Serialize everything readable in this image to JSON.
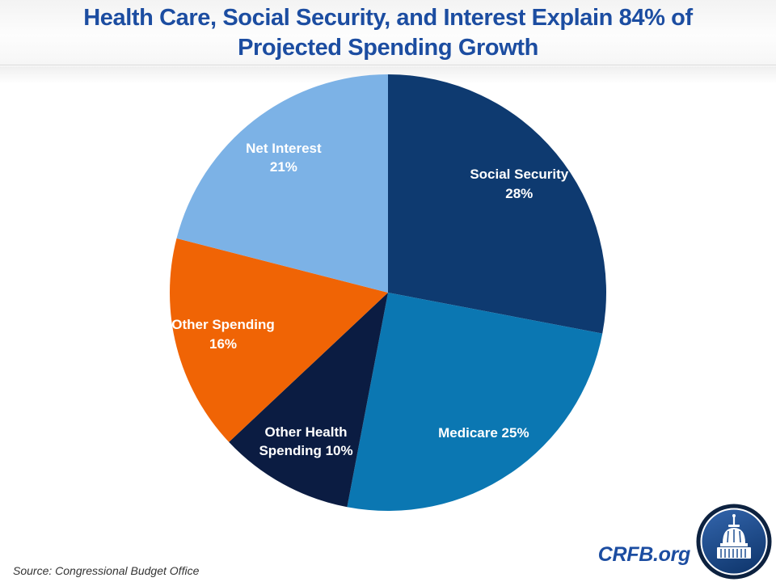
{
  "title": {
    "lines": [
      "Health Care, Social Security, and Interest Explain 84% of",
      "Projected Spending Growth"
    ]
  },
  "chart_data": {
    "type": "pie",
    "title": "Health Care, Social Security, and Interest Explain 84% of Projected Spending Growth",
    "categories": [
      "Social Security",
      "Medicare",
      "Other Health Spending",
      "Other Spending",
      "Net Interest"
    ],
    "values": [
      28,
      25,
      10,
      16,
      21
    ],
    "unit": "%",
    "colors": [
      "#0e3a70",
      "#0b77b2",
      "#0b1c42",
      "#f06405",
      "#7cb2e6"
    ],
    "label_lines": [
      [
        "Social Security",
        "28%"
      ],
      [
        "Medicare 25%"
      ],
      [
        "Other Health",
        "Spending 10%"
      ],
      [
        "Other Spending",
        "16%"
      ],
      [
        "Net Interest",
        "21%"
      ]
    ],
    "start_angle_deg": 0,
    "direction": "clockwise",
    "legend_position": "none (labels inside slices)",
    "label_color": "#ffffff"
  },
  "footer": {
    "source": "Source: Congressional Budget Office",
    "brand": "CRFB.org"
  },
  "theme": {
    "title_blue": "#1c4da1",
    "logo_ring": "#0d2240",
    "logo_fill_top": "#3568b0",
    "logo_fill_bottom": "#123a72"
  }
}
